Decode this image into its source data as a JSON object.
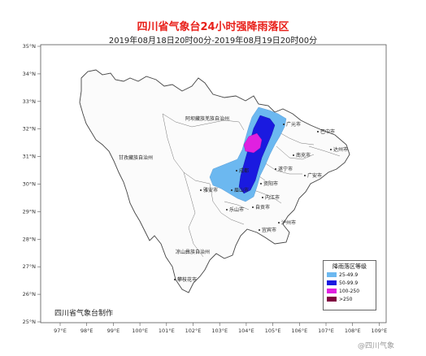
{
  "title": "四川省气象台24小时强降雨落区",
  "subtitle": "2019年08月18日20时00分-2019年08月19日20时00分",
  "producer": "四川省气象台制作",
  "watermark": "@四川气象",
  "axes": {
    "lon_ticks": [
      "97°E",
      "98°E",
      "99°E",
      "100°E",
      "101°E",
      "102°E",
      "103°E",
      "104°E",
      "105°E",
      "106°E",
      "107°E",
      "108°E",
      "109°E"
    ],
    "lat_ticks": [
      "35°N",
      "34°N",
      "33°N",
      "32°N",
      "31°N",
      "30°N",
      "29°N",
      "28°N",
      "27°N",
      "26°N",
      "25°N"
    ]
  },
  "regions": {
    "aba": "阿坝藏族羌族自治州",
    "ganzi": "甘孜藏族自治州",
    "liangshan": "凉山彝族自治州"
  },
  "cities": {
    "guangyuan": "广元市",
    "bazhong": "巴中市",
    "dazhou": "达州市",
    "nanchong": "南充市",
    "suining": "遂宁市",
    "guangan": "广安市",
    "ziyang": "资阳市",
    "neijiang": "内江市",
    "zigong": "自贡市",
    "leshan": "乐山市",
    "meishan": "眉山市",
    "yaan": "雅安市",
    "yibin": "宜宾市",
    "luzhou": "泸州市",
    "panzhihua": "攀枝花市",
    "chengdu": "成都"
  },
  "legend": {
    "title": "降雨落区等级",
    "items": [
      {
        "label": "25-49.9",
        "color": "#6cb8f0"
      },
      {
        "label": "50-99.9",
        "color": "#1a1ae0"
      },
      {
        "label": "100-250",
        "color": "#e020e0"
      },
      {
        "label": ">250",
        "color": "#800040"
      }
    ]
  }
}
